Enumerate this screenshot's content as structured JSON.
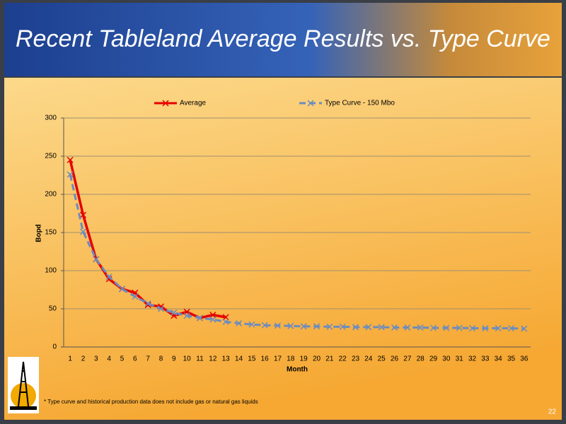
{
  "chart_data": {
    "type": "line",
    "title": "Recent Tableland Average Results vs. Type Curve",
    "x_label": "Month",
    "y_label": "Bopd",
    "categories": [
      "1",
      "2",
      "3",
      "4",
      "5",
      "6",
      "7",
      "8",
      "9",
      "10",
      "11",
      "12",
      "13",
      "14",
      "15",
      "16",
      "17",
      "18",
      "19",
      "20",
      "21",
      "22",
      "23",
      "24",
      "25",
      "26",
      "27",
      "28",
      "29",
      "30",
      "31",
      "32",
      "33",
      "34",
      "35",
      "36"
    ],
    "series": [
      {
        "name": "Average",
        "color": "#e60000",
        "dashed": false,
        "values": [
          245,
          173,
          115,
          89,
          76,
          71,
          55,
          53,
          41,
          46,
          38,
          42,
          39,
          null,
          null,
          null,
          null,
          null,
          null,
          null,
          null,
          null,
          null,
          null,
          null,
          null,
          null,
          null,
          null,
          null,
          null,
          null,
          null,
          null,
          null,
          null
        ]
      },
      {
        "name": "Type Curve - 150 Mbo",
        "color": "#6b8cc0",
        "dashed": true,
        "values": [
          226,
          151,
          115,
          92,
          76,
          66,
          57,
          50,
          45,
          41,
          38,
          36,
          33,
          31,
          29.5,
          28.5,
          28,
          27.5,
          27,
          27,
          26.5,
          26.5,
          26,
          26,
          26,
          25.5,
          25.5,
          25.5,
          25,
          25,
          25,
          24.5,
          24.5,
          24.5,
          24.5,
          24
        ]
      }
    ],
    "ylim": [
      0,
      300
    ],
    "yticks": [
      0,
      50,
      100,
      150,
      200,
      250,
      300
    ],
    "grid": true,
    "legend": "top",
    "footnote": "* Type curve and historical production data does not include gas or natural gas liquids"
  },
  "page_number": "22"
}
